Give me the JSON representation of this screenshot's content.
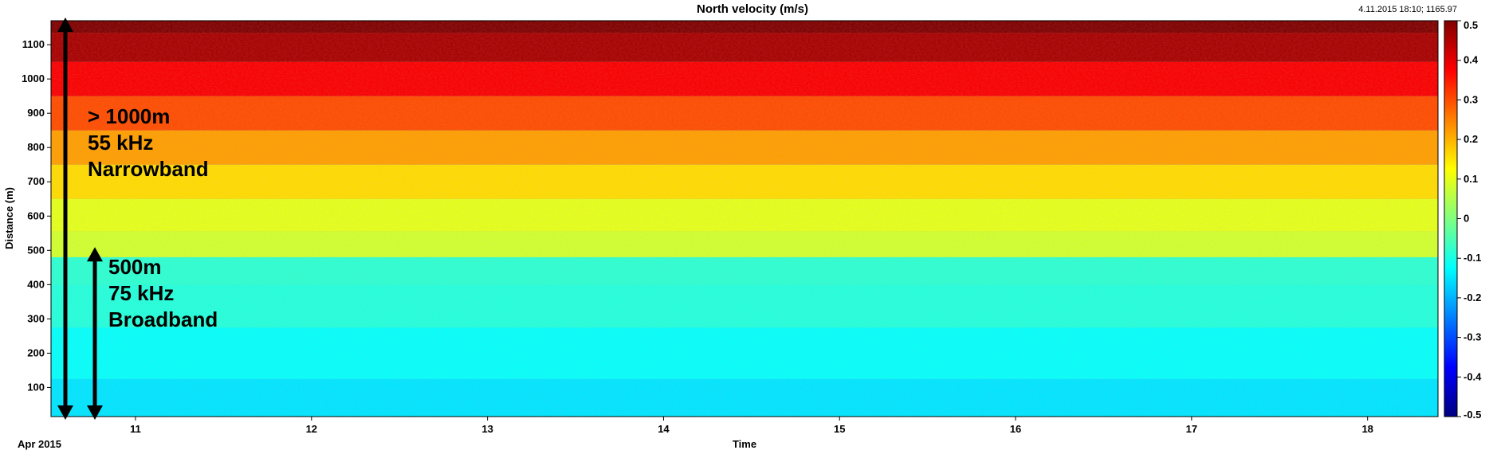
{
  "header": {
    "title": "North velocity (m/s)",
    "corner_readout": "4.11.2015 18:10; 1165.97"
  },
  "chart_data": {
    "type": "heatmap",
    "title": "North velocity (m/s)",
    "xlabel": "Time",
    "ylabel": "Distance (m)",
    "x_start_label": "Apr 2015",
    "x_ticks": [
      "11",
      "12",
      "13",
      "14",
      "15",
      "16",
      "17",
      "18"
    ],
    "x_tick_values": [
      11,
      12,
      13,
      14,
      15,
      16,
      17,
      18
    ],
    "xlim": [
      10.52,
      18.4
    ],
    "y_ticks": [
      100,
      200,
      300,
      400,
      500,
      600,
      700,
      800,
      900,
      1000,
      1100
    ],
    "ylim": [
      15,
      1170
    ],
    "colorbar": {
      "ticks": [
        "0.5",
        "0.4",
        "0.3",
        "0.2",
        "0.1",
        "0",
        "-0.1",
        "-0.2",
        "-0.3",
        "-0.4",
        "-0.5"
      ],
      "range": [
        -0.5,
        0.5
      ],
      "colormap": "jet"
    },
    "annotations": [
      {
        "lines": [
          "> 1000m",
          "55 kHz",
          "Narrowband"
        ],
        "range_m": [
          15,
          1170
        ]
      },
      {
        "lines": [
          "500m",
          "75 kHz",
          "Broadband"
        ],
        "range_m": [
          15,
          500
        ]
      }
    ],
    "profile": [
      {
        "distance": 50,
        "velocity": -0.15
      },
      {
        "distance": 200,
        "velocity": -0.12
      },
      {
        "distance": 350,
        "velocity": -0.09
      },
      {
        "distance": 450,
        "velocity": -0.08
      },
      {
        "distance": 510,
        "velocity": 0.08
      },
      {
        "distance": 600,
        "velocity": 0.1
      },
      {
        "distance": 700,
        "velocity": 0.16
      },
      {
        "distance": 800,
        "velocity": 0.22
      },
      {
        "distance": 900,
        "velocity": 0.3
      },
      {
        "distance": 1000,
        "velocity": 0.38
      },
      {
        "distance": 1100,
        "velocity": 0.46
      },
      {
        "distance": 1170,
        "velocity": 0.5
      }
    ]
  }
}
